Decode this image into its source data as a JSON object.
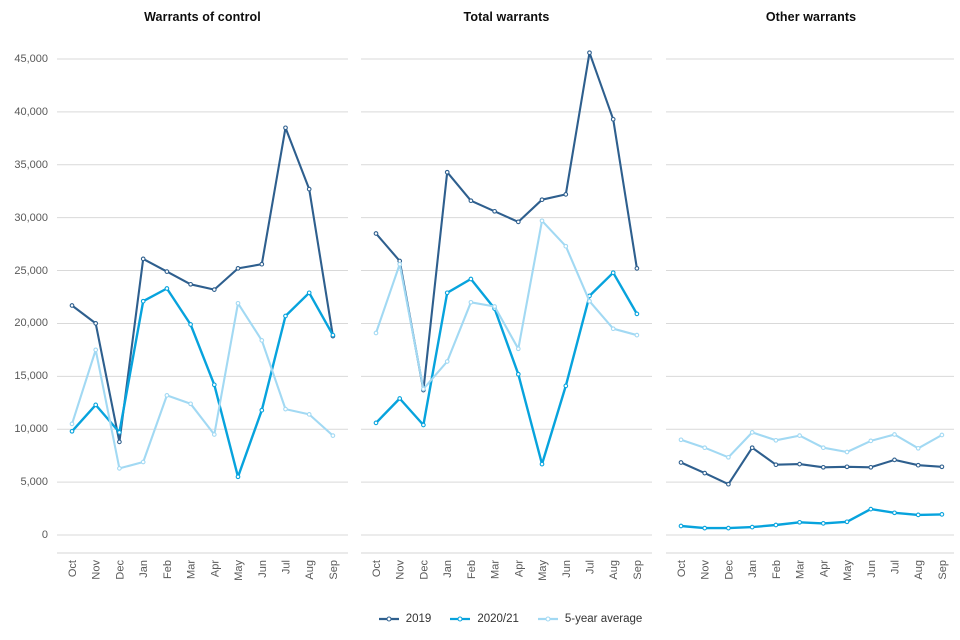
{
  "page": {
    "background": "#ffffff"
  },
  "palette": {
    "grid": "#d9d9d9",
    "axis_line": "#d4d4d4",
    "tick_text": "#595959",
    "title_text": "#0d0d0d"
  },
  "y_axis": {
    "min": 0,
    "max": 45000,
    "step": 5000,
    "tick_labels": [
      "45,000",
      "40,000",
      "35,000",
      "30,000",
      "25,000",
      "20,000",
      "15,000",
      "10,000",
      "5,000",
      "0"
    ]
  },
  "legend": {
    "items": [
      {
        "label": "2019",
        "color": "#2e5f8e"
      },
      {
        "label": "2020/21",
        "color": "#07a3dd"
      },
      {
        "label": "5-year average",
        "color": "#a2d9f3"
      }
    ]
  },
  "chart_data": [
    {
      "type": "line",
      "title": "Warrants of control",
      "categories": [
        "Oct",
        "Nov",
        "Dec",
        "Jan",
        "Feb",
        "Mar",
        "Apr",
        "May",
        "Jun",
        "Jul",
        "Aug",
        "Sep"
      ],
      "ylim": [
        0,
        45000
      ],
      "grid": true,
      "legend_position": "bottom",
      "series": [
        {
          "name": "2019",
          "color": "#2e5f8e",
          "values": [
            21700,
            20000,
            8800,
            26100,
            24900,
            23700,
            23200,
            25200,
            25600,
            38500,
            32700,
            18800
          ]
        },
        {
          "name": "2020/21",
          "color": "#07a3dd",
          "values": [
            9800,
            12300,
            9700,
            22100,
            23300,
            19900,
            14200,
            5500,
            11800,
            20700,
            22900,
            18900
          ]
        },
        {
          "name": "5-year average",
          "color": "#a2d9f3",
          "values": [
            10500,
            17500,
            6300,
            6900,
            13200,
            12400,
            9500,
            21900,
            18400,
            11900,
            11400,
            9400
          ]
        }
      ]
    },
    {
      "type": "line",
      "title": "Total warrants",
      "categories": [
        "Oct",
        "Nov",
        "Dec",
        "Jan",
        "Feb",
        "Mar",
        "Apr",
        "May",
        "Jun",
        "Jul",
        "Aug",
        "Sep"
      ],
      "ylim": [
        0,
        45000
      ],
      "grid": true,
      "legend_position": "bottom",
      "series": [
        {
          "name": "2019",
          "color": "#2e5f8e",
          "values": [
            28500,
            25900,
            13700,
            34300,
            31600,
            30600,
            29600,
            31700,
            32200,
            45600,
            39300,
            25200
          ]
        },
        {
          "name": "2020/21",
          "color": "#07a3dd",
          "values": [
            10600,
            12900,
            10400,
            22900,
            24200,
            21400,
            15200,
            6700,
            14100,
            22600,
            24800,
            20900
          ]
        },
        {
          "name": "5-year average",
          "color": "#a2d9f3",
          "values": [
            19100,
            25600,
            13800,
            16400,
            22000,
            21600,
            17600,
            29700,
            27300,
            22100,
            19500,
            18900
          ]
        }
      ]
    },
    {
      "type": "line",
      "title": "Other warrants",
      "categories": [
        "Oct",
        "Nov",
        "Dec",
        "Jan",
        "Feb",
        "Mar",
        "Apr",
        "May",
        "Jun",
        "Jul",
        "Aug",
        "Sep"
      ],
      "ylim": [
        0,
        45000
      ],
      "grid": true,
      "legend_position": "bottom",
      "series": [
        {
          "name": "2019",
          "color": "#2e5f8e",
          "values": [
            6850,
            5850,
            4800,
            8250,
            6650,
            6700,
            6400,
            6450,
            6400,
            7100,
            6600,
            6450
          ]
        },
        {
          "name": "2020/21",
          "color": "#07a3dd",
          "values": [
            850,
            650,
            650,
            750,
            950,
            1200,
            1100,
            1250,
            2450,
            2100,
            1900,
            1950
          ]
        },
        {
          "name": "5-year average",
          "color": "#a2d9f3",
          "values": [
            9000,
            8250,
            7350,
            9700,
            8950,
            9400,
            8250,
            7850,
            8900,
            9500,
            8200,
            9450
          ]
        }
      ]
    }
  ]
}
